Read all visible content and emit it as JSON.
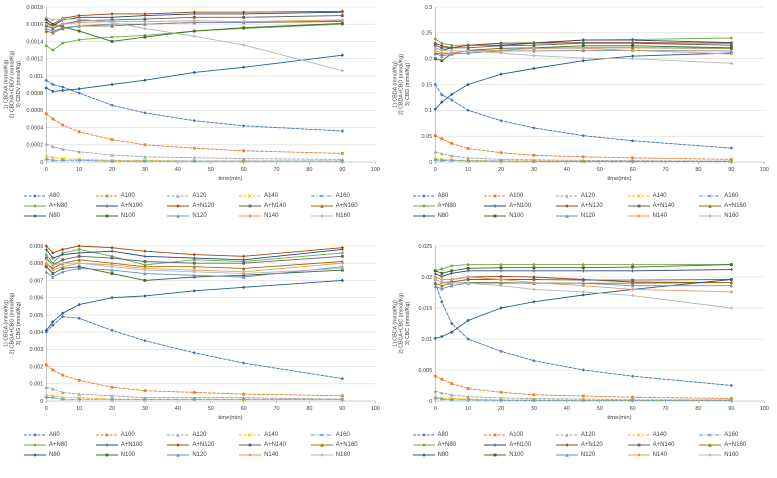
{
  "colors": {
    "grid": "#d9d9d9",
    "axis": "#9a9a9a",
    "text": "#404040",
    "background": "#ffffff"
  },
  "series_styles": [
    {
      "name": "A80",
      "color": "#4472C4",
      "dash": "3 1.5",
      "marker": "diamond"
    },
    {
      "name": "A100",
      "color": "#ED7D31",
      "dash": "3 1.5",
      "marker": "square"
    },
    {
      "name": "A120",
      "color": "#A5A5A5",
      "dash": "3 1.5",
      "marker": "triangle"
    },
    {
      "name": "A140",
      "color": "#FFC000",
      "dash": "3 1.5",
      "marker": "x"
    },
    {
      "name": "A160",
      "color": "#5B9BD5",
      "dash": "4 1.5 1 1.5",
      "marker": "asterisk"
    },
    {
      "name": "A+N80",
      "color": "#70AD47",
      "dash": "",
      "marker": "circle"
    },
    {
      "name": "A+N100",
      "color": "#264478",
      "dash": "",
      "marker": "plus"
    },
    {
      "name": "A+N120",
      "color": "#9E480E",
      "dash": "",
      "marker": "diamond"
    },
    {
      "name": "A+N140",
      "color": "#636363",
      "dash": "",
      "marker": "square"
    },
    {
      "name": "A+N160",
      "color": "#997300",
      "dash": "",
      "marker": "triangle"
    },
    {
      "name": "N80",
      "color": "#255E91",
      "dash": "",
      "marker": "diamond"
    },
    {
      "name": "N100",
      "color": "#43682B",
      "dash": "",
      "marker": "square"
    },
    {
      "name": "N120",
      "color": "#698ED0",
      "dash": "",
      "marker": "triangle"
    },
    {
      "name": "N140",
      "color": "#F1975A",
      "dash": "",
      "marker": "circle"
    },
    {
      "name": "N160",
      "color": "#B7B7B7",
      "dash": "",
      "marker": "diamond"
    }
  ],
  "chart_data": [
    {
      "type": "line",
      "ylabel_lines": [
        "1) CBDVA (mmol/Kg)",
        "2) CBDVA+CBDV (mmol/Kg)",
        "3) CBDV (mmol/Kg)"
      ],
      "xlabel": "time(min)",
      "xlim": [
        0,
        100
      ],
      "xtick": 10,
      "ylim": [
        0,
        0.0018
      ],
      "ytick": 0.0002,
      "grid": true,
      "legend_position": "bottom",
      "x": [
        0,
        2,
        5,
        10,
        20,
        30,
        45,
        60,
        90
      ],
      "series": [
        {
          "name": "A80",
          "values": [
            0.00095,
            0.0009,
            0.00087,
            0.0008,
            0.00066,
            0.00057,
            0.00048,
            0.00042,
            0.00036
          ]
        },
        {
          "name": "A100",
          "values": [
            0.00056,
            0.0005,
            0.00043,
            0.00035,
            0.00026,
            0.0002,
            0.00016,
            0.00013,
            0.0001
          ]
        },
        {
          "name": "A120",
          "values": [
            0.00021,
            0.00018,
            0.00015,
            0.00012,
            8e-05,
            6e-05,
            5e-05,
            4e-05,
            3e-05
          ]
        },
        {
          "name": "A140",
          "values": [
            6e-05,
            5e-05,
            4e-05,
            3e-05,
            2e-05,
            2e-05,
            1e-05,
            1e-05,
            1e-05
          ]
        },
        {
          "name": "A160",
          "values": [
            3e-05,
            2e-05,
            2e-05,
            2e-05,
            1e-05,
            1e-05,
            1e-05,
            1e-05,
            1e-05
          ]
        },
        {
          "name": "A+N80",
          "values": [
            0.00135,
            0.0013,
            0.00138,
            0.00142,
            0.00145,
            0.00147,
            0.00152,
            0.00155,
            0.0016
          ]
        },
        {
          "name": "A+N100",
          "values": [
            0.00162,
            0.00158,
            0.00165,
            0.00168,
            0.00168,
            0.0017,
            0.00172,
            0.00172,
            0.00174
          ]
        },
        {
          "name": "A+N120",
          "values": [
            0.00165,
            0.0016,
            0.00167,
            0.0017,
            0.00172,
            0.00172,
            0.00174,
            0.00174,
            0.00175
          ]
        },
        {
          "name": "A+N140",
          "values": [
            0.00158,
            0.00155,
            0.0016,
            0.00164,
            0.00165,
            0.00166,
            0.00168,
            0.00168,
            0.0017
          ]
        },
        {
          "name": "A+N160",
          "values": [
            0.00152,
            0.0015,
            0.00155,
            0.00158,
            0.00158,
            0.0016,
            0.00162,
            0.00162,
            0.00163
          ]
        },
        {
          "name": "N80",
          "values": [
            0.00086,
            0.00082,
            0.00083,
            0.00085,
            0.0009,
            0.00095,
            0.00104,
            0.0011,
            0.00124
          ]
        },
        {
          "name": "N100",
          "values": [
            0.00166,
            0.0016,
            0.00157,
            0.00152,
            0.0014,
            0.00145,
            0.00152,
            0.00156,
            0.00161
          ]
        },
        {
          "name": "N120",
          "values": [
            0.00155,
            0.00152,
            0.00156,
            0.00158,
            0.0016,
            0.0016,
            0.00162,
            0.00162,
            0.00164
          ]
        },
        {
          "name": "N140",
          "values": [
            0.0016,
            0.00157,
            0.0016,
            0.00162,
            0.00163,
            0.00163,
            0.00164,
            0.00163,
            0.00165
          ]
        },
        {
          "name": "N160",
          "values": [
            0.00168,
            0.00165,
            0.00166,
            0.00166,
            0.00162,
            0.00155,
            0.00146,
            0.00136,
            0.00106
          ]
        }
      ]
    },
    {
      "type": "line",
      "ylabel_lines": [
        "1) CBDA (mmol/Kg)",
        "2) CBDA+CBD (mmol/Kg)",
        "3) CBD (mmol/Kg)"
      ],
      "xlabel": "time(min)",
      "xlim": [
        0,
        100
      ],
      "xtick": 10,
      "ylim": [
        0,
        0.3
      ],
      "ytick": 0.05,
      "grid": true,
      "legend_position": "bottom",
      "x": [
        0,
        2,
        5,
        10,
        20,
        30,
        45,
        60,
        90
      ],
      "series": [
        {
          "name": "A80",
          "values": [
            0.15,
            0.13,
            0.12,
            0.1,
            0.08,
            0.066,
            0.051,
            0.041,
            0.027
          ]
        },
        {
          "name": "A100",
          "values": [
            0.051,
            0.045,
            0.036,
            0.026,
            0.018,
            0.013,
            0.01,
            0.008,
            0.005
          ]
        },
        {
          "name": "A120",
          "values": [
            0.02,
            0.016,
            0.012,
            0.008,
            0.005,
            0.004,
            0.003,
            0.0025,
            0.002
          ]
        },
        {
          "name": "A140",
          "values": [
            0.006,
            0.005,
            0.004,
            0.003,
            0.002,
            0.002,
            0.001,
            0.001,
            0.001
          ]
        },
        {
          "name": "A160",
          "values": [
            0.004,
            0.003,
            0.003,
            0.002,
            0.002,
            0.001,
            0.001,
            0.001,
            0.001
          ]
        },
        {
          "name": "A+N80",
          "values": [
            0.238,
            0.23,
            0.226,
            0.226,
            0.23,
            0.231,
            0.236,
            0.237,
            0.24
          ]
        },
        {
          "name": "A+N100",
          "values": [
            0.221,
            0.216,
            0.221,
            0.226,
            0.226,
            0.23,
            0.236,
            0.236,
            0.231
          ]
        },
        {
          "name": "A+N120",
          "values": [
            0.23,
            0.225,
            0.221,
            0.226,
            0.23,
            0.23,
            0.231,
            0.231,
            0.23
          ]
        },
        {
          "name": "A+N140",
          "values": [
            0.226,
            0.221,
            0.221,
            0.221,
            0.225,
            0.226,
            0.23,
            0.23,
            0.226
          ]
        },
        {
          "name": "A+N160",
          "values": [
            0.211,
            0.209,
            0.211,
            0.215,
            0.216,
            0.22,
            0.221,
            0.221,
            0.22
          ]
        },
        {
          "name": "N80",
          "values": [
            0.102,
            0.116,
            0.131,
            0.15,
            0.17,
            0.181,
            0.196,
            0.205,
            0.211
          ]
        },
        {
          "name": "N100",
          "values": [
            0.2,
            0.196,
            0.21,
            0.216,
            0.22,
            0.221,
            0.225,
            0.225,
            0.221
          ]
        },
        {
          "name": "N120",
          "values": [
            0.21,
            0.205,
            0.209,
            0.211,
            0.215,
            0.215,
            0.216,
            0.216,
            0.215
          ]
        },
        {
          "name": "N140",
          "values": [
            0.216,
            0.211,
            0.211,
            0.215,
            0.216,
            0.22,
            0.22,
            0.216,
            0.209
          ]
        },
        {
          "name": "N160",
          "values": [
            0.221,
            0.216,
            0.215,
            0.215,
            0.211,
            0.206,
            0.201,
            0.2,
            0.191
          ]
        }
      ]
    },
    {
      "type": "line",
      "ylabel_lines": [
        "1) CBGA (mmol/Kg)",
        "2) CBGA+CBG (mmol/Kg)",
        "3) CBG (mmol/Kg)"
      ],
      "xlabel": "time(min)",
      "xlim": [
        0,
        100
      ],
      "xtick": 10,
      "ylim": [
        0,
        0.009
      ],
      "ytick": 0.001,
      "grid": true,
      "legend_position": "bottom",
      "x": [
        0,
        2,
        5,
        10,
        20,
        30,
        45,
        60,
        90
      ],
      "series": [
        {
          "name": "A80",
          "values": [
            0.004,
            0.0044,
            0.0049,
            0.0048,
            0.0041,
            0.0035,
            0.0028,
            0.0022,
            0.0013
          ]
        },
        {
          "name": "A100",
          "values": [
            0.0021,
            0.0018,
            0.0015,
            0.0012,
            0.0008,
            0.0006,
            0.0005,
            0.0004,
            0.0003
          ]
        },
        {
          "name": "A120",
          "values": [
            0.0008,
            0.0007,
            0.0005,
            0.0004,
            0.0003,
            0.0002,
            0.0002,
            0.0002,
            0.0001
          ]
        },
        {
          "name": "A140",
          "values": [
            0.0003,
            0.0003,
            0.0002,
            0.0002,
            0.0001,
            0.0001,
            0.0001,
            0.0001,
            0.0001
          ]
        },
        {
          "name": "A160",
          "values": [
            0.0002,
            0.0002,
            0.0001,
            0.0001,
            0.0001,
            0.0001,
            0.0001,
            0.0001,
            0.0001
          ]
        },
        {
          "name": "A+N80",
          "values": [
            0.0085,
            0.008,
            0.0086,
            0.0088,
            0.0084,
            0.0079,
            0.0082,
            0.0081,
            0.0086
          ]
        },
        {
          "name": "A+N100",
          "values": [
            0.0088,
            0.0083,
            0.0085,
            0.0086,
            0.0087,
            0.0084,
            0.0083,
            0.0082,
            0.0088
          ]
        },
        {
          "name": "A+N120",
          "values": [
            0.009,
            0.0086,
            0.0088,
            0.009,
            0.0089,
            0.0087,
            0.0085,
            0.0084,
            0.0089
          ]
        },
        {
          "name": "A+N140",
          "values": [
            0.0083,
            0.0079,
            0.0082,
            0.0084,
            0.0083,
            0.0081,
            0.008,
            0.008,
            0.0084
          ]
        },
        {
          "name": "A+N160",
          "values": [
            0.008,
            0.0077,
            0.008,
            0.0082,
            0.008,
            0.0078,
            0.0078,
            0.0077,
            0.0081
          ]
        },
        {
          "name": "N80",
          "values": [
            0.0041,
            0.0046,
            0.0051,
            0.0056,
            0.006,
            0.0061,
            0.0064,
            0.0066,
            0.007
          ]
        },
        {
          "name": "N100",
          "values": [
            0.0078,
            0.0074,
            0.0077,
            0.0078,
            0.0074,
            0.007,
            0.0072,
            0.0073,
            0.0076
          ]
        },
        {
          "name": "N120",
          "values": [
            0.0075,
            0.0072,
            0.0075,
            0.0077,
            0.0076,
            0.0074,
            0.0073,
            0.0072,
            0.0078
          ]
        },
        {
          "name": "N140",
          "values": [
            0.008,
            0.0076,
            0.0078,
            0.008,
            0.0079,
            0.0077,
            0.0076,
            0.0075,
            0.008
          ]
        },
        {
          "name": "N160",
          "values": [
            0.0082,
            0.0079,
            0.008,
            0.008,
            0.0078,
            0.0076,
            0.0075,
            0.0074,
            0.0077
          ]
        }
      ]
    },
    {
      "type": "line",
      "ylabel_lines": [
        "1) CBCA (mmol/Kg)",
        "2) CBCA+CBC (mmol/Kg)",
        "3) CBC (mmol/Kg)"
      ],
      "xlabel": "time(min)",
      "xlim": [
        0,
        100
      ],
      "xtick": 10,
      "ylim": [
        0,
        0.025
      ],
      "ytick": 0.005,
      "grid": true,
      "legend_position": "bottom",
      "x": [
        0,
        2,
        5,
        10,
        20,
        30,
        45,
        60,
        90
      ],
      "series": [
        {
          "name": "A80",
          "values": [
            0.019,
            0.016,
            0.0125,
            0.01,
            0.008,
            0.0065,
            0.005,
            0.004,
            0.0025
          ]
        },
        {
          "name": "A100",
          "values": [
            0.004,
            0.0035,
            0.0028,
            0.002,
            0.0014,
            0.001,
            0.0008,
            0.0006,
            0.0004
          ]
        },
        {
          "name": "A120",
          "values": [
            0.0016,
            0.0013,
            0.001,
            0.0007,
            0.0005,
            0.0004,
            0.0003,
            0.0002,
            0.0002
          ]
        },
        {
          "name": "A140",
          "values": [
            0.0006,
            0.0005,
            0.0004,
            0.0003,
            0.0002,
            0.0002,
            0.0001,
            0.0001,
            0.0001
          ]
        },
        {
          "name": "A160",
          "values": [
            0.0004,
            0.0003,
            0.0002,
            0.0002,
            0.0001,
            0.0001,
            0.0001,
            0.0001,
            0.0001
          ]
        },
        {
          "name": "A+N80",
          "values": [
            0.021,
            0.0213,
            0.0218,
            0.022,
            0.022,
            0.022,
            0.022,
            0.022,
            0.022
          ]
        },
        {
          "name": "A+N100",
          "values": [
            0.0205,
            0.0201,
            0.0206,
            0.021,
            0.021,
            0.021,
            0.021,
            0.021,
            0.0212
          ]
        },
        {
          "name": "A+N120",
          "values": [
            0.02,
            0.0196,
            0.0196,
            0.02,
            0.0201,
            0.02,
            0.0196,
            0.0192,
            0.0191
          ]
        },
        {
          "name": "A+N140",
          "values": [
            0.0196,
            0.0191,
            0.0192,
            0.0196,
            0.0196,
            0.0196,
            0.0195,
            0.0195,
            0.0196
          ]
        },
        {
          "name": "A+N160",
          "values": [
            0.019,
            0.0186,
            0.019,
            0.0191,
            0.0191,
            0.019,
            0.019,
            0.019,
            0.0191
          ]
        },
        {
          "name": "N80",
          "values": [
            0.0101,
            0.0104,
            0.0111,
            0.013,
            0.015,
            0.016,
            0.0171,
            0.018,
            0.0196
          ]
        },
        {
          "name": "N100",
          "values": [
            0.021,
            0.0206,
            0.021,
            0.0214,
            0.0215,
            0.0215,
            0.0215,
            0.0216,
            0.022
          ]
        },
        {
          "name": "N120",
          "values": [
            0.0185,
            0.0181,
            0.0186,
            0.019,
            0.019,
            0.019,
            0.019,
            0.0186,
            0.0186
          ]
        },
        {
          "name": "N140",
          "values": [
            0.02,
            0.0196,
            0.0196,
            0.02,
            0.0196,
            0.0191,
            0.0186,
            0.018,
            0.0176
          ]
        },
        {
          "name": "N160",
          "values": [
            0.0196,
            0.0191,
            0.019,
            0.019,
            0.0186,
            0.018,
            0.0176,
            0.017,
            0.015
          ]
        }
      ]
    }
  ]
}
